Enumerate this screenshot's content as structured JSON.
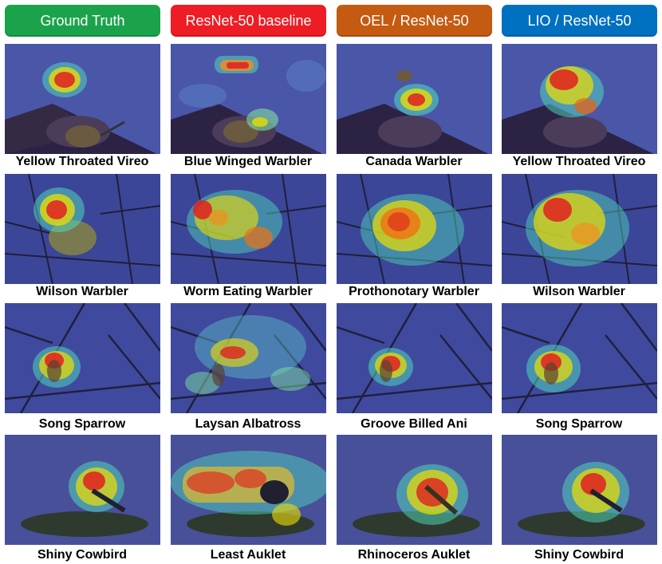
{
  "headers": [
    {
      "label": "Ground Truth",
      "color": "#1aa34a"
    },
    {
      "label": "ResNet-50 baseline",
      "color": "#ee1c24"
    },
    {
      "label": "OEL / ResNet-50",
      "color": "#c55a11"
    },
    {
      "label": "LIO / ResNet-50",
      "color": "#0070c0"
    }
  ],
  "captions": [
    [
      "Yellow Throated Vireo",
      "Blue Winged Warbler",
      "Canada Warbler",
      "Yellow Throated Vireo"
    ],
    [
      "Wilson Warbler",
      "Worm Eating Warbler",
      "Prothonotary Warbler",
      "Wilson Warbler"
    ],
    [
      "Song Sparrow",
      "Laysan Albatross",
      "Groove Billed Ani",
      "Song Sparrow"
    ],
    [
      "Shiny Cowbird",
      "Least Auklet",
      "Rhinoceros Auklet",
      "Shiny Cowbird"
    ]
  ],
  "images": [
    [
      "bird-on-branch-heatmap",
      "bird-on-branch-heatmap",
      "bird-on-branch-heatmap",
      "bird-on-branch-heatmap"
    ],
    [
      "warbler-on-twig-heatmap",
      "warbler-on-twig-heatmap",
      "warbler-on-twig-heatmap",
      "warbler-on-twig-heatmap"
    ],
    [
      "sparrow-on-branch-heatmap",
      "sparrow-on-branch-heatmap",
      "sparrow-on-branch-heatmap",
      "sparrow-on-branch-heatmap"
    ],
    [
      "cowbird-on-ground-heatmap",
      "cowbird-on-ground-heatmap",
      "cowbird-on-ground-heatmap",
      "cowbird-on-ground-heatmap"
    ]
  ]
}
